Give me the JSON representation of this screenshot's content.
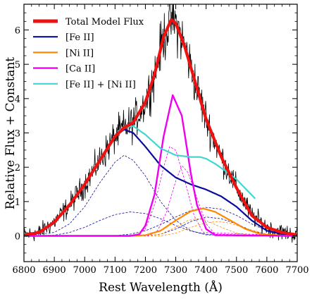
{
  "chart_data": {
    "type": "line",
    "title": "",
    "xlabel": "Rest Wavelength (Å)",
    "ylabel": "Relative Flux + Constant",
    "xlim": [
      6800,
      7700
    ],
    "ylim": [
      -0.75,
      6.75
    ],
    "xticks": [
      6800,
      6900,
      7000,
      7100,
      7200,
      7300,
      7400,
      7500,
      7600,
      7700
    ],
    "yticks": [
      0,
      1,
      2,
      3,
      4,
      5,
      6
    ],
    "legend_position": "top-left",
    "grid": false,
    "data_color": "#000000",
    "series": [
      {
        "name": "Total Model Flux",
        "color": "#ee1111",
        "x": [
          6800,
          6850,
          6900,
          6950,
          7000,
          7050,
          7100,
          7130,
          7160,
          7200,
          7230,
          7260,
          7285,
          7300,
          7330,
          7360,
          7400,
          7450,
          7500,
          7550,
          7600,
          7650,
          7700
        ],
        "y": [
          0.02,
          0.1,
          0.4,
          0.9,
          1.5,
          2.2,
          2.9,
          3.15,
          3.3,
          3.9,
          4.7,
          5.8,
          6.3,
          6.2,
          5.5,
          4.6,
          3.4,
          2.3,
          1.4,
          0.6,
          0.25,
          0.1,
          0.03
        ]
      },
      {
        "name": "[Fe II]",
        "color": "#0a0a9c",
        "x": [
          6800,
          6850,
          6900,
          6950,
          7000,
          7050,
          7100,
          7130,
          7160,
          7200,
          7250,
          7300,
          7350,
          7400,
          7450,
          7500,
          7550,
          7600,
          7650,
          7700
        ],
        "y": [
          0.02,
          0.1,
          0.4,
          0.9,
          1.5,
          2.2,
          2.9,
          3.1,
          3.0,
          2.6,
          2.05,
          1.7,
          1.5,
          1.35,
          1.15,
          0.85,
          0.45,
          0.15,
          0.05,
          0.01
        ]
      },
      {
        "name": "[Ni II]",
        "color": "#ff8800",
        "x": [
          6800,
          7150,
          7200,
          7250,
          7300,
          7350,
          7390,
          7430,
          7480,
          7530,
          7580,
          7650,
          7700
        ],
        "y": [
          0,
          0,
          0.02,
          0.15,
          0.45,
          0.72,
          0.8,
          0.7,
          0.45,
          0.2,
          0.05,
          0.01,
          0
        ],
        "components": [
          {
            "x": [
              6800,
              7200,
              7250,
              7300,
              7340,
              7370,
              7400,
              7450,
              7500,
              7550,
              7700
            ],
            "y": [
              0,
              0,
              0.05,
              0.25,
              0.45,
              0.5,
              0.45,
              0.25,
              0.08,
              0.01,
              0
            ]
          },
          {
            "x": [
              6800,
              7250,
              7300,
              7350,
              7400,
              7440,
              7480,
              7530,
              7600,
              7700
            ],
            "y": [
              0,
              0,
              0.08,
              0.25,
              0.38,
              0.42,
              0.37,
              0.22,
              0.05,
              0
            ]
          }
        ]
      },
      {
        "name": "[Ca II]",
        "color": "#ee00ee",
        "x": [
          6800,
          7150,
          7180,
          7200,
          7230,
          7260,
          7290,
          7320,
          7350,
          7370,
          7400,
          7430,
          7700
        ],
        "y": [
          0,
          0,
          0.05,
          0.3,
          1.2,
          2.9,
          4.1,
          3.5,
          1.8,
          0.9,
          0.2,
          0.02,
          0
        ],
        "components": [
          {
            "x": [
              6800,
              7170,
              7200,
              7230,
              7260,
              7280,
              7300,
              7330,
              7360,
              7390,
              7700
            ],
            "y": [
              0,
              0,
              0.2,
              0.9,
              2.0,
              2.6,
              2.5,
              1.6,
              0.6,
              0.1,
              0
            ]
          },
          {
            "x": [
              6800,
              7210,
              7240,
              7270,
              7300,
              7320,
              7340,
              7370,
              7400,
              7430,
              7700
            ],
            "y": [
              0,
              0,
              0.15,
              0.7,
              1.6,
              2.05,
              1.85,
              1.1,
              0.35,
              0.05,
              0
            ]
          }
        ]
      },
      {
        "name": "[Fe II] + [Ni II]",
        "color": "#3fd7cf",
        "x": [
          7110,
          7130,
          7160,
          7200,
          7250,
          7300,
          7350,
          7380,
          7400,
          7430,
          7470,
          7500,
          7560
        ],
        "y": [
          3.05,
          3.15,
          3.2,
          2.95,
          2.55,
          2.35,
          2.3,
          2.3,
          2.25,
          2.1,
          1.85,
          1.65,
          1.1
        ]
      }
    ],
    "fe_ii_components": [
      {
        "x": [
          6800,
          6900,
          6950,
          7000,
          7050,
          7100,
          7130,
          7160,
          7200,
          7250,
          7300,
          7350,
          7400,
          7700
        ],
        "y": [
          0.0,
          0.1,
          0.35,
          0.85,
          1.55,
          2.15,
          2.35,
          2.2,
          1.75,
          1.0,
          0.45,
          0.15,
          0.03,
          0
        ]
      },
      {
        "x": [
          6800,
          6900,
          6950,
          7000,
          7050,
          7100,
          7150,
          7200,
          7250,
          7300,
          7350,
          7400,
          7450,
          7700
        ],
        "y": [
          0.0,
          0.02,
          0.1,
          0.25,
          0.45,
          0.62,
          0.7,
          0.65,
          0.5,
          0.3,
          0.14,
          0.05,
          0.01,
          0
        ]
      },
      {
        "x": [
          6800,
          7100,
          7150,
          7200,
          7250,
          7300,
          7350,
          7400,
          7450,
          7500,
          7550,
          7600,
          7650,
          7700
        ],
        "y": [
          0.0,
          0.01,
          0.05,
          0.15,
          0.33,
          0.55,
          0.74,
          0.83,
          0.78,
          0.6,
          0.35,
          0.15,
          0.05,
          0.01
        ]
      },
      {
        "x": [
          6800,
          7200,
          7250,
          7300,
          7350,
          7400,
          7450,
          7500,
          7550,
          7600,
          7700
        ],
        "y": [
          0.0,
          0.0,
          0.05,
          0.2,
          0.42,
          0.55,
          0.5,
          0.35,
          0.15,
          0.04,
          0
        ]
      }
    ],
    "observed_spectrum": {
      "name": "Observed spectrum",
      "x": [
        6800,
        6850,
        6900,
        6950,
        7000,
        7050,
        7100,
        7130,
        7160,
        7200,
        7230,
        7260,
        7285,
        7300,
        7330,
        7360,
        7400,
        7450,
        7500,
        7550,
        7600,
        7650,
        7700
      ],
      "y": [
        0.02,
        0.1,
        0.4,
        0.9,
        1.5,
        2.2,
        2.9,
        3.15,
        3.3,
        3.9,
        4.7,
        5.8,
        6.3,
        6.2,
        5.5,
        4.6,
        3.4,
        2.3,
        1.4,
        0.6,
        0.25,
        0.1,
        0.03
      ]
    }
  }
}
